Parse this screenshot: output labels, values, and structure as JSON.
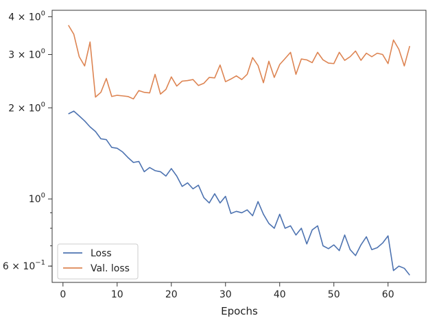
{
  "chart_data": {
    "type": "line",
    "title": "",
    "xlabel": "Epochs",
    "ylabel": "",
    "xlim": [
      -2,
      67
    ],
    "ylim": [
      0.53,
      4.2
    ],
    "yscale": "log",
    "grid": false,
    "legend_position": "lower-left",
    "x_ticks": [
      0,
      10,
      20,
      30,
      40,
      50,
      60
    ],
    "y_major_ticks": [
      {
        "value": 4,
        "base": "4 × 10",
        "exp": "0"
      },
      {
        "value": 3,
        "base": "3 × 10",
        "exp": "0"
      },
      {
        "value": 2,
        "base": "2 × 10",
        "exp": "0"
      },
      {
        "value": 1,
        "base": "10",
        "exp": "0"
      },
      {
        "value": 0.6,
        "base": "6 × 10",
        "exp": "−1"
      }
    ],
    "y_minor_ticks": [
      0.9,
      0.8,
      0.7,
      0.6
    ],
    "x": [
      1,
      2,
      3,
      4,
      5,
      6,
      7,
      8,
      9,
      10,
      11,
      12,
      13,
      14,
      15,
      16,
      17,
      18,
      19,
      20,
      21,
      22,
      23,
      24,
      25,
      26,
      27,
      28,
      29,
      30,
      31,
      32,
      33,
      34,
      35,
      36,
      37,
      38,
      39,
      40,
      41,
      42,
      43,
      44,
      45,
      46,
      47,
      48,
      49,
      50,
      51,
      52,
      53,
      54,
      55,
      56,
      57,
      58,
      59,
      60,
      61,
      62,
      63,
      64
    ],
    "series": [
      {
        "name": "Loss",
        "color": "#4c72b0",
        "values": [
          1.91,
          1.95,
          1.88,
          1.81,
          1.73,
          1.67,
          1.58,
          1.57,
          1.48,
          1.47,
          1.43,
          1.37,
          1.32,
          1.33,
          1.23,
          1.27,
          1.24,
          1.23,
          1.19,
          1.26,
          1.19,
          1.1,
          1.13,
          1.08,
          1.11,
          1.01,
          0.97,
          1.04,
          0.97,
          1.02,
          0.895,
          0.91,
          0.9,
          0.92,
          0.88,
          0.98,
          0.89,
          0.83,
          0.8,
          0.89,
          0.8,
          0.815,
          0.76,
          0.8,
          0.71,
          0.79,
          0.815,
          0.7,
          0.685,
          0.705,
          0.675,
          0.76,
          0.68,
          0.65,
          0.705,
          0.75,
          0.68,
          0.69,
          0.715,
          0.755,
          0.58,
          0.6,
          0.59,
          0.56
        ]
      },
      {
        "name": "Val. loss",
        "color": "#dd8452",
        "values": [
          3.75,
          3.5,
          2.95,
          2.75,
          3.3,
          2.17,
          2.25,
          2.5,
          2.18,
          2.2,
          2.19,
          2.18,
          2.14,
          2.28,
          2.25,
          2.24,
          2.58,
          2.22,
          2.3,
          2.53,
          2.36,
          2.45,
          2.46,
          2.48,
          2.37,
          2.41,
          2.52,
          2.51,
          2.77,
          2.44,
          2.49,
          2.55,
          2.48,
          2.58,
          2.93,
          2.76,
          2.42,
          2.85,
          2.52,
          2.78,
          2.91,
          3.05,
          2.58,
          2.9,
          2.88,
          2.82,
          3.05,
          2.88,
          2.81,
          2.8,
          3.05,
          2.87,
          2.95,
          3.08,
          2.87,
          3.03,
          2.95,
          3.03,
          3.0,
          2.8,
          3.35,
          3.12,
          2.75,
          3.2
        ]
      }
    ]
  }
}
